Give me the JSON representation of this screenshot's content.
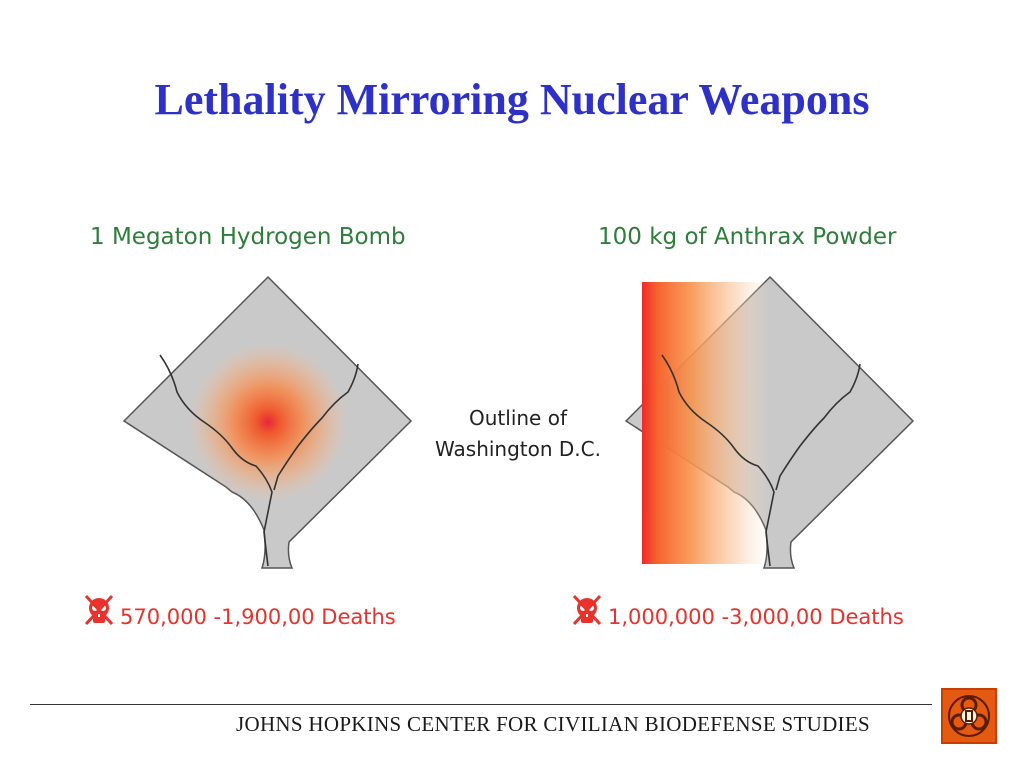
{
  "title": "Lethality Mirroring Nuclear Weapons",
  "left_panel": {
    "heading": "1 Megaton Hydrogen Bomb",
    "deaths": "570,000 -1,900,00 Deaths"
  },
  "right_panel": {
    "heading": "100 kg of Anthrax Powder",
    "deaths": "1,000,000 -3,000,00 Deaths"
  },
  "center_label": {
    "line1": "Outline of",
    "line2": "Washington D.C."
  },
  "footer": {
    "text": "JOHNS HOPKINS CENTER FOR CIVILIAN BIODEFENSE STUDIES"
  },
  "colors": {
    "title": "#2e31c8",
    "heading": "#2e7d3a",
    "deaths": "#e8322b",
    "map_fill": "#c9c9c9",
    "logo": "#e55a12"
  }
}
